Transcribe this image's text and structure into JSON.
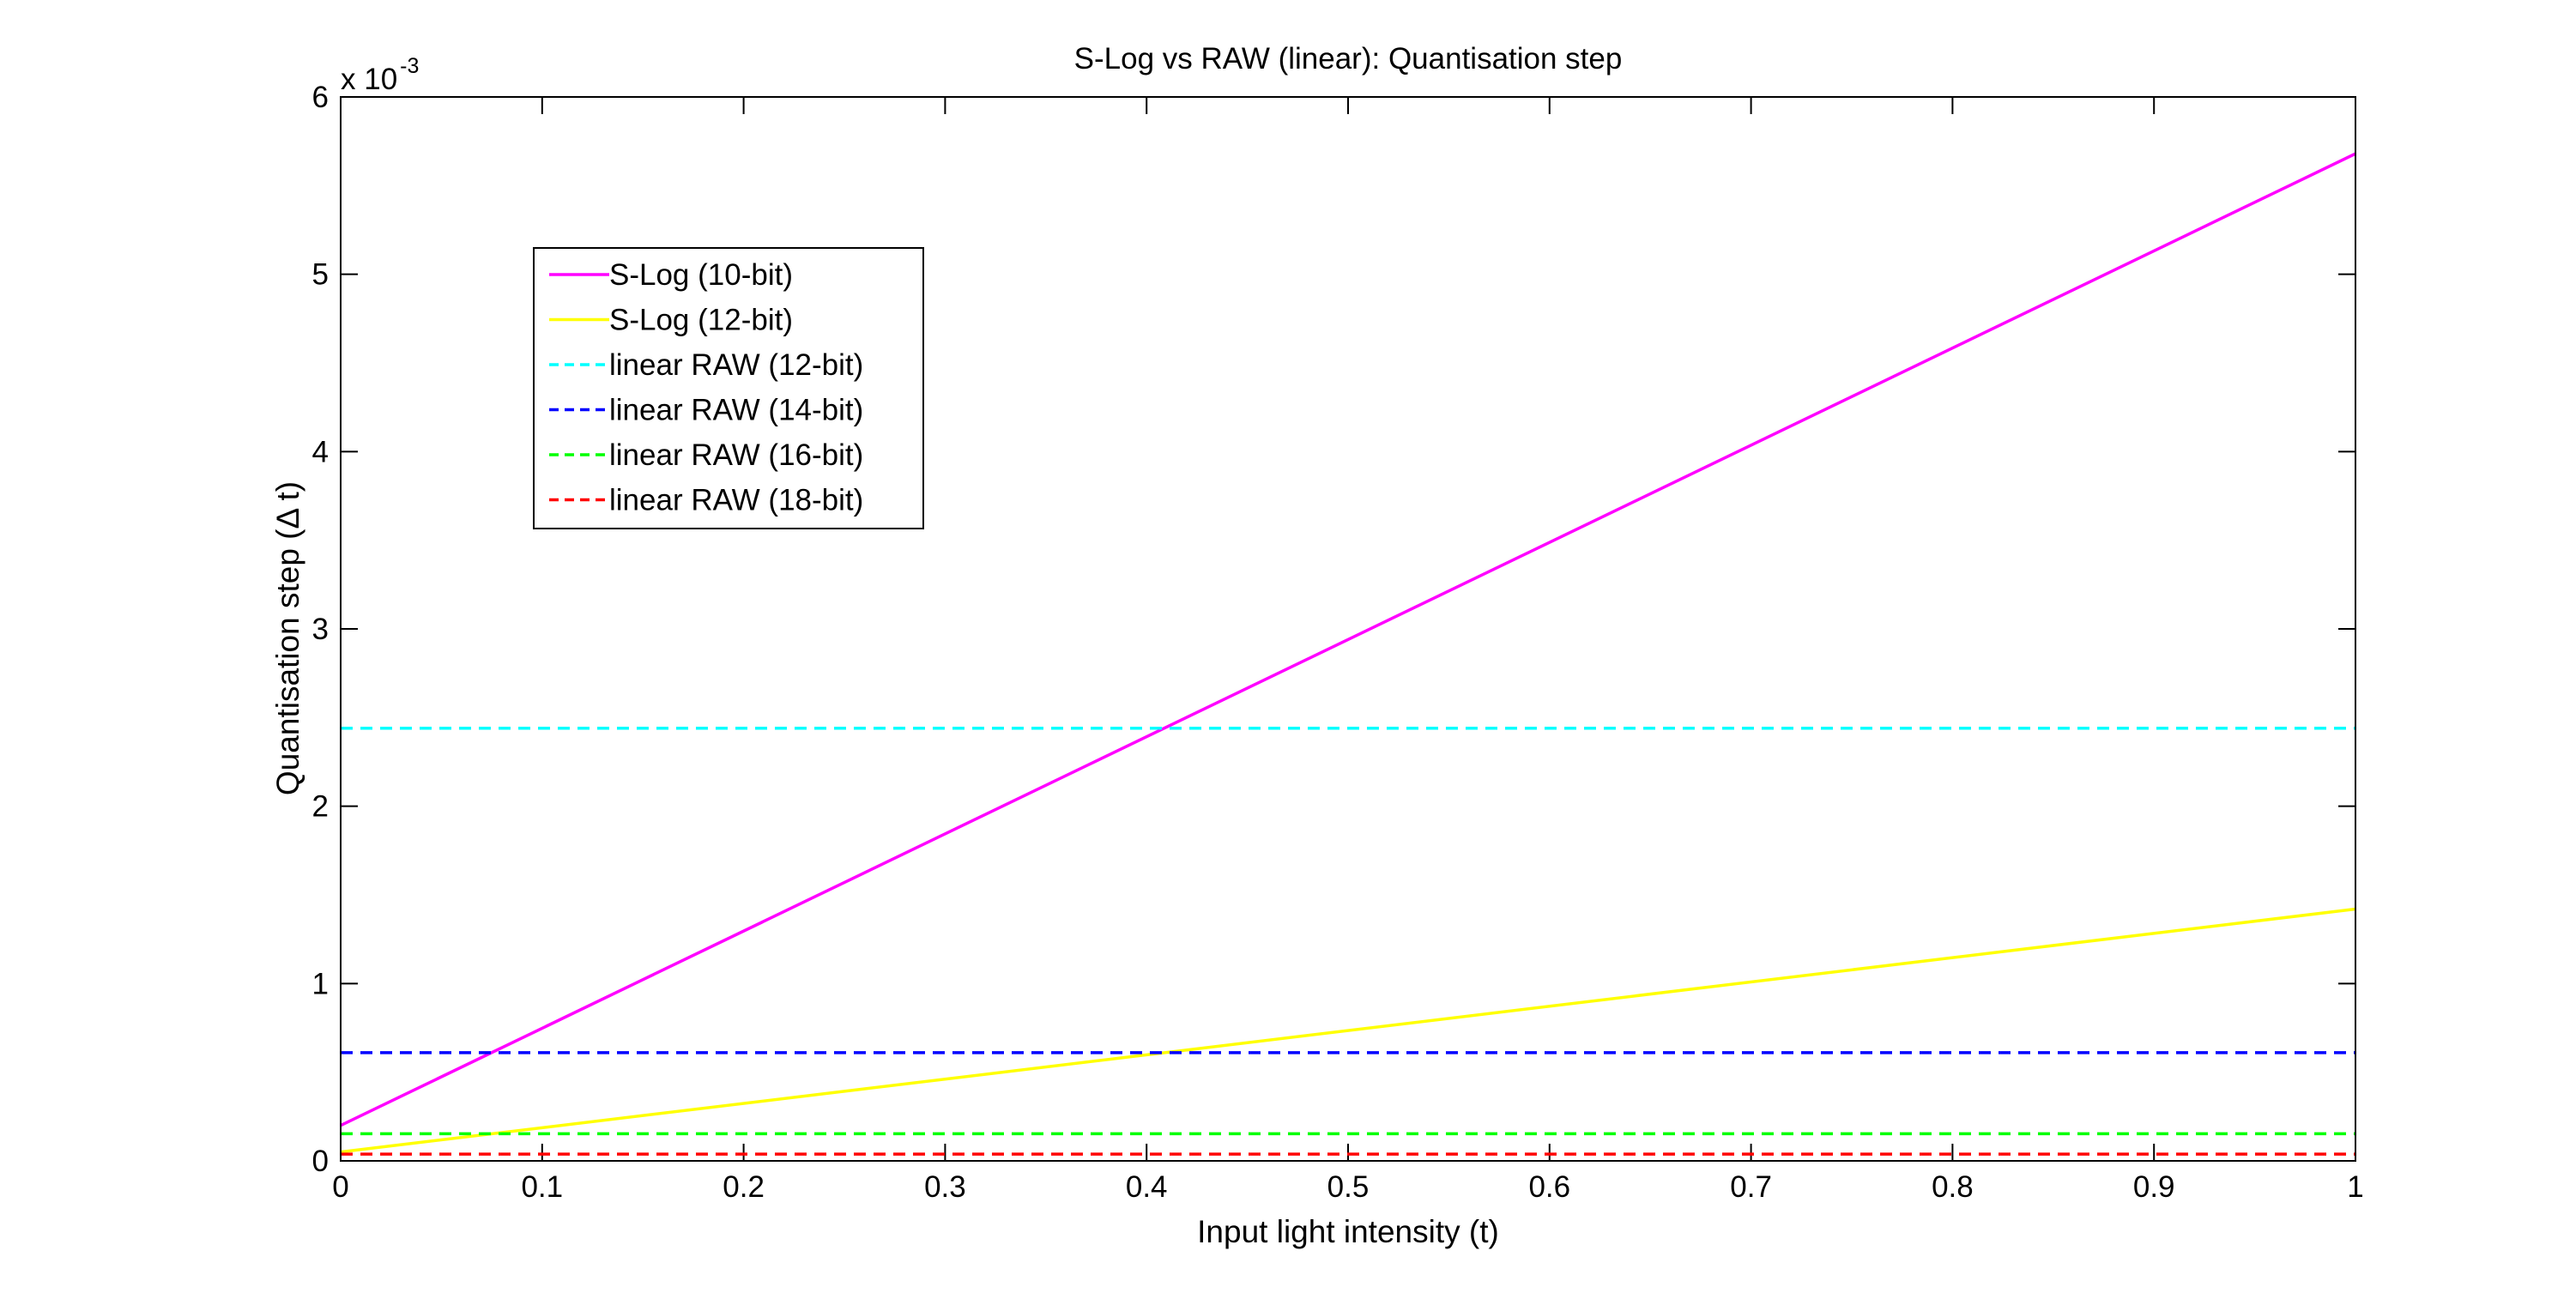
{
  "chart_data": {
    "type": "line",
    "title": "S-Log vs RAW (linear): Quantisation step",
    "xlabel": "Input light intensity (t)",
    "ylabel": "Quantisation step (Δ t)",
    "y_exponent_label": "x 10",
    "y_exponent_power": "-3",
    "xlim": [
      0,
      1
    ],
    "ylim": [
      0,
      6
    ],
    "grid": false,
    "legend_position": "top-left",
    "x_ticks": [
      0,
      0.1,
      0.2,
      0.3,
      0.4,
      0.5,
      0.6,
      0.7,
      0.8,
      0.9,
      1
    ],
    "x_tick_labels": [
      "0",
      "0.1",
      "0.2",
      "0.3",
      "0.4",
      "0.5",
      "0.6",
      "0.7",
      "0.8",
      "0.9",
      "1"
    ],
    "y_ticks": [
      0,
      1,
      2,
      3,
      4,
      5,
      6
    ],
    "y_tick_labels": [
      "0",
      "1",
      "2",
      "3",
      "4",
      "5",
      "6"
    ],
    "series": [
      {
        "name": "S-Log (10-bit)",
        "color": "#ff00ff",
        "dash": "solid",
        "x": [
          0,
          1
        ],
        "y": [
          0.2,
          5.68
        ]
      },
      {
        "name": "S-Log (12-bit)",
        "color": "#ffff00",
        "dash": "solid",
        "x": [
          0,
          1
        ],
        "y": [
          0.05,
          1.42
        ]
      },
      {
        "name": "linear RAW (12-bit)",
        "color": "#00ffff",
        "dash": "dashed",
        "x": [
          0,
          1
        ],
        "y": [
          2.44,
          2.44
        ]
      },
      {
        "name": "linear RAW (14-bit)",
        "color": "#0000ff",
        "dash": "dashed",
        "x": [
          0,
          1
        ],
        "y": [
          0.61,
          0.61
        ]
      },
      {
        "name": "linear RAW (16-bit)",
        "color": "#00ff00",
        "dash": "dashed",
        "x": [
          0,
          1
        ],
        "y": [
          0.153,
          0.153
        ]
      },
      {
        "name": "linear RAW (18-bit)",
        "color": "#ff0000",
        "dash": "dashed",
        "x": [
          0,
          1
        ],
        "y": [
          0.038,
          0.038
        ]
      }
    ]
  }
}
